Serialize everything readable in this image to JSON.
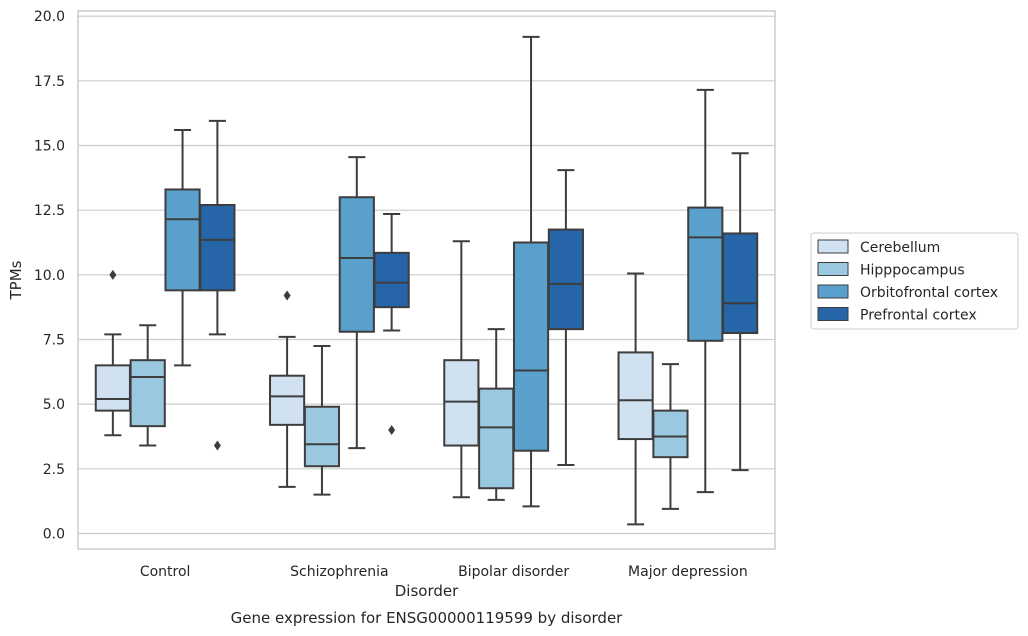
{
  "chart_data": {
    "type": "box",
    "title": "",
    "caption": "Gene expression for ENSG00000119599 by disorder",
    "xlabel": "Disorder",
    "ylabel": "TPMs",
    "ylim": [
      -0.6,
      20.2
    ],
    "yticks": [
      0.0,
      2.5,
      5.0,
      7.5,
      10.0,
      12.5,
      15.0,
      17.5,
      20.0
    ],
    "ytick_labels": [
      "0.0",
      "2.5",
      "5.0",
      "7.5",
      "10.0",
      "12.5",
      "15.0",
      "17.5",
      "20.0"
    ],
    "grid": "horizontal",
    "legend_position": "right",
    "categories": [
      "Control",
      "Schizophrenia",
      "Bipolar disorder",
      "Major depression"
    ],
    "series": [
      {
        "name": "Cerebellum",
        "color": "#d0e1f2",
        "boxes": [
          {
            "whisker_low": 3.8,
            "q1": 4.75,
            "median": 5.2,
            "q3": 6.5,
            "whisker_high": 7.7,
            "outliers": [
              10.0
            ]
          },
          {
            "whisker_low": 1.8,
            "q1": 4.2,
            "median": 5.3,
            "q3": 6.1,
            "whisker_high": 7.6,
            "outliers": [
              9.2
            ]
          },
          {
            "whisker_low": 1.4,
            "q1": 3.4,
            "median": 5.1,
            "q3": 6.7,
            "whisker_high": 11.3,
            "outliers": []
          },
          {
            "whisker_low": 0.35,
            "q1": 3.65,
            "median": 5.15,
            "q3": 7.0,
            "whisker_high": 10.05,
            "outliers": []
          }
        ]
      },
      {
        "name": "Hipppocampus",
        "color": "#9ac8e0",
        "boxes": [
          {
            "whisker_low": 3.4,
            "q1": 4.15,
            "median": 6.05,
            "q3": 6.7,
            "whisker_high": 8.05,
            "outliers": []
          },
          {
            "whisker_low": 1.5,
            "q1": 2.6,
            "median": 3.45,
            "q3": 4.9,
            "whisker_high": 7.25,
            "outliers": []
          },
          {
            "whisker_low": 1.3,
            "q1": 1.75,
            "median": 4.1,
            "q3": 5.6,
            "whisker_high": 7.9,
            "outliers": []
          },
          {
            "whisker_low": 0.95,
            "q1": 2.95,
            "median": 3.75,
            "q3": 4.75,
            "whisker_high": 6.55,
            "outliers": []
          }
        ]
      },
      {
        "name": "Orbitofrontal cortex",
        "color": "#5aa0cd",
        "boxes": [
          {
            "whisker_low": 6.5,
            "q1": 9.4,
            "median": 12.15,
            "q3": 13.3,
            "whisker_high": 15.6,
            "outliers": []
          },
          {
            "whisker_low": 3.3,
            "q1": 7.8,
            "median": 10.65,
            "q3": 13.0,
            "whisker_high": 14.55,
            "outliers": []
          },
          {
            "whisker_low": 1.05,
            "q1": 3.2,
            "median": 6.3,
            "q3": 11.25,
            "whisker_high": 19.2,
            "outliers": []
          },
          {
            "whisker_low": 1.6,
            "q1": 7.45,
            "median": 11.45,
            "q3": 12.6,
            "whisker_high": 17.15,
            "outliers": []
          }
        ]
      },
      {
        "name": "Prefrontal cortex",
        "color": "#2565a8",
        "boxes": [
          {
            "whisker_low": 7.7,
            "q1": 9.4,
            "median": 11.35,
            "q3": 12.7,
            "whisker_high": 15.95,
            "outliers": [
              3.4
            ]
          },
          {
            "whisker_low": 7.85,
            "q1": 8.75,
            "median": 9.7,
            "q3": 10.85,
            "whisker_high": 12.35,
            "outliers": [
              4.0
            ]
          },
          {
            "whisker_low": 2.65,
            "q1": 7.9,
            "median": 9.65,
            "q3": 11.75,
            "whisker_high": 14.05,
            "outliers": []
          },
          {
            "whisker_low": 2.45,
            "q1": 7.75,
            "median": 8.9,
            "q3": 11.6,
            "whisker_high": 14.7,
            "outliers": []
          }
        ]
      }
    ]
  }
}
